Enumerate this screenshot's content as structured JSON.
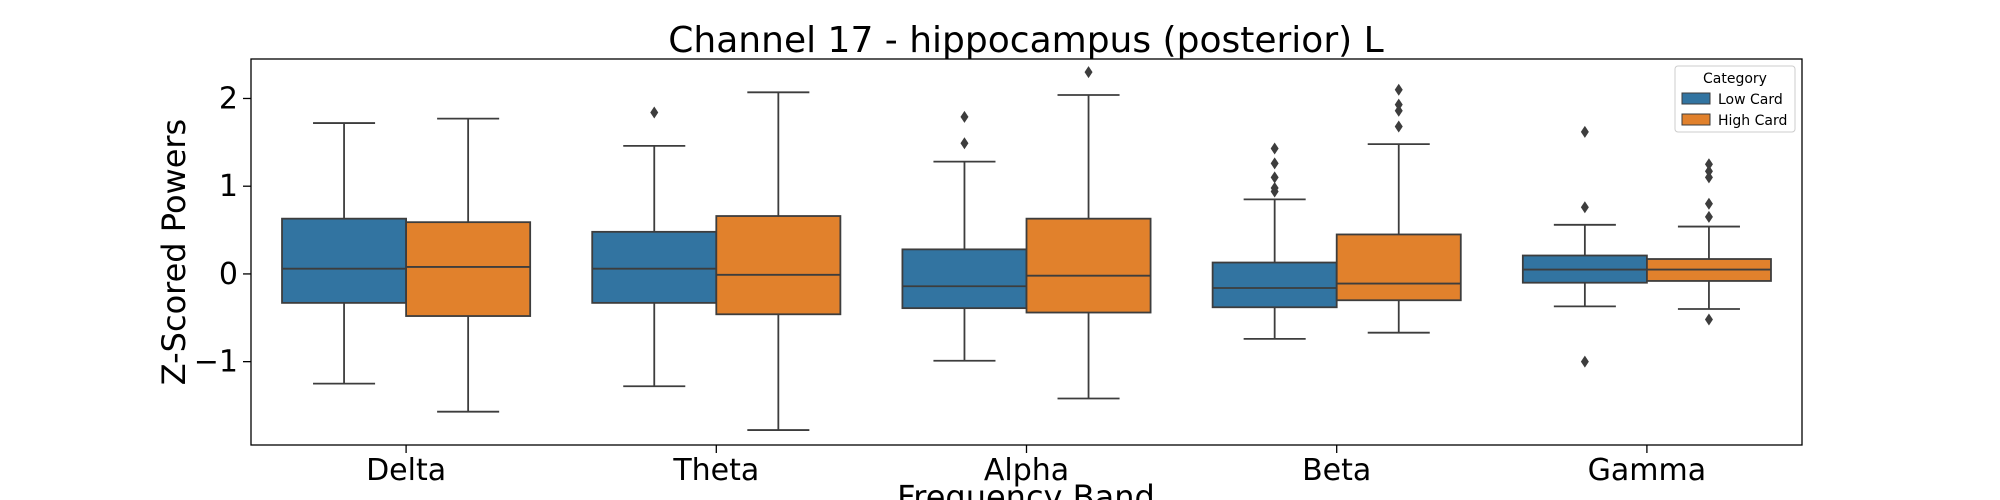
{
  "chart_data": {
    "type": "boxplot",
    "title": "Channel 17 - hippocampus (posterior) L",
    "xlabel": "Frequency Band",
    "ylabel": "Z-Scored Powers",
    "ylim": [
      -1.95,
      2.45
    ],
    "yticks": [
      -1,
      0,
      1,
      2
    ],
    "ytick_labels": [
      "−1",
      "0",
      "1",
      "2"
    ],
    "categories": [
      "Delta",
      "Theta",
      "Alpha",
      "Beta",
      "Gamma"
    ],
    "legend": {
      "title": "Category",
      "position": "top-right"
    },
    "series": [
      {
        "name": "Low Card",
        "color": "#3274a1",
        "boxes": [
          {
            "whislo": -1.25,
            "q1": -0.33,
            "med": 0.06,
            "q3": 0.63,
            "whishi": 1.72,
            "fliers": []
          },
          {
            "whislo": -1.28,
            "q1": -0.33,
            "med": 0.06,
            "q3": 0.48,
            "whishi": 1.46,
            "fliers": [
              1.84
            ]
          },
          {
            "whislo": -0.99,
            "q1": -0.39,
            "med": -0.14,
            "q3": 0.28,
            "whishi": 1.28,
            "fliers": [
              1.49,
              1.79
            ]
          },
          {
            "whislo": -0.74,
            "q1": -0.38,
            "med": -0.16,
            "q3": 0.13,
            "whishi": 0.85,
            "fliers": [
              0.94,
              0.98,
              1.1,
              1.26,
              1.43
            ]
          },
          {
            "whislo": -0.37,
            "q1": -0.1,
            "med": 0.05,
            "q3": 0.21,
            "whishi": 0.56,
            "fliers": [
              0.76,
              1.62,
              -1.0
            ]
          }
        ]
      },
      {
        "name": "High Card",
        "color": "#e1812c",
        "boxes": [
          {
            "whislo": -1.57,
            "q1": -0.48,
            "med": 0.08,
            "q3": 0.59,
            "whishi": 1.77,
            "fliers": []
          },
          {
            "whislo": -1.78,
            "q1": -0.46,
            "med": -0.01,
            "q3": 0.66,
            "whishi": 2.07,
            "fliers": []
          },
          {
            "whislo": -1.42,
            "q1": -0.44,
            "med": -0.02,
            "q3": 0.63,
            "whishi": 2.04,
            "fliers": [
              2.3
            ]
          },
          {
            "whislo": -0.67,
            "q1": -0.3,
            "med": -0.11,
            "q3": 0.45,
            "whishi": 1.48,
            "fliers": [
              1.68,
              1.86,
              1.93,
              2.1
            ]
          },
          {
            "whislo": -0.4,
            "q1": -0.08,
            "med": 0.05,
            "q3": 0.17,
            "whishi": 0.54,
            "fliers": [
              0.65,
              0.8,
              1.1,
              1.17,
              1.25,
              -0.52
            ]
          }
        ]
      }
    ]
  }
}
